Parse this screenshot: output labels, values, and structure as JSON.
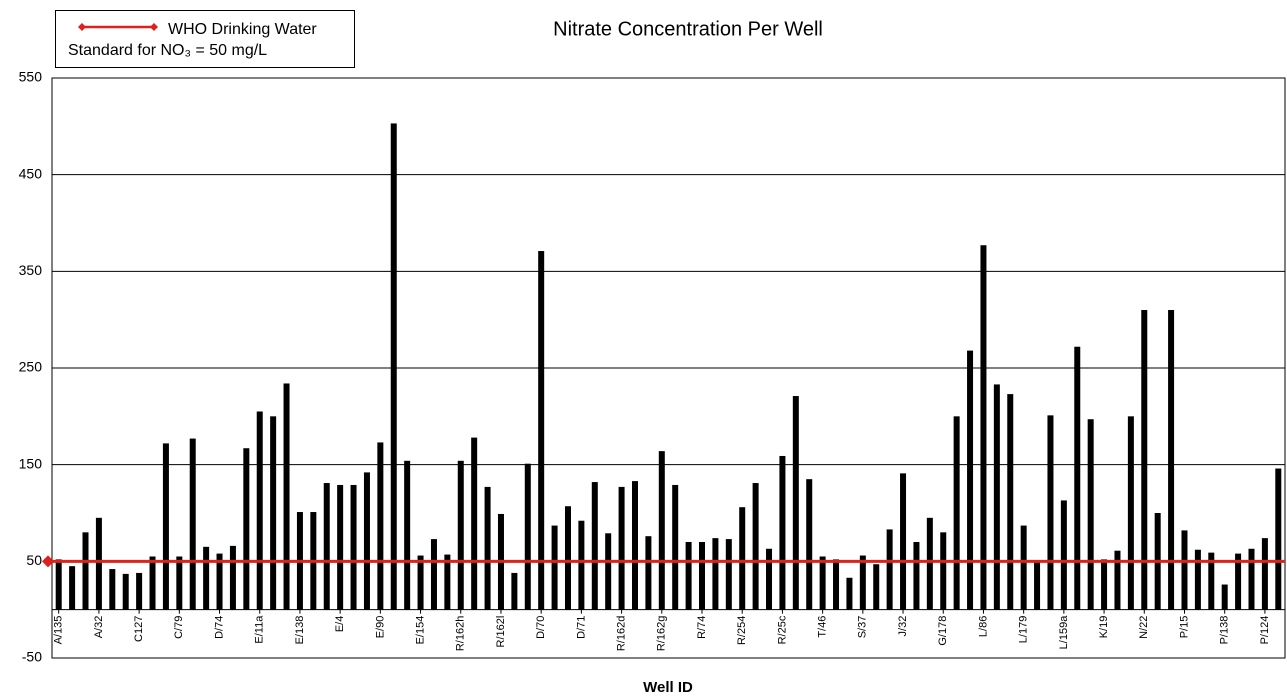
{
  "chart_data": {
    "type": "bar",
    "title": "Nitrate Concentration Per Well",
    "x_label": "Well ID",
    "categories": [
      "A/135",
      null,
      null,
      "A/32",
      null,
      null,
      "C127",
      null,
      null,
      "C/79",
      null,
      null,
      "D/74",
      null,
      null,
      "E/11a",
      null,
      null,
      "E/138",
      null,
      null,
      "E/4",
      null,
      null,
      "E/90",
      null,
      null,
      "E/154",
      null,
      null,
      "R/162h",
      null,
      null,
      "R/162l",
      null,
      null,
      "D/70",
      null,
      null,
      "D/71",
      null,
      null,
      "R/162d",
      null,
      null,
      "R/162g",
      null,
      null,
      "R/74",
      null,
      null,
      "R/254",
      null,
      null,
      "R/25c",
      null,
      null,
      "T/46",
      null,
      null,
      "S/37",
      null,
      null,
      "J/32",
      null,
      null,
      "G/178",
      null,
      null,
      "L/86",
      null,
      null,
      "L/179",
      null,
      null,
      "L/159a",
      null,
      null,
      "K/19",
      null,
      null,
      "N/22",
      null,
      null,
      "P/15",
      null,
      null,
      "P/138",
      null,
      null,
      "P/124",
      null
    ],
    "values": [
      52,
      45,
      80,
      95,
      42,
      37,
      38,
      55,
      172,
      55,
      177,
      65,
      58,
      66,
      167,
      205,
      200,
      234,
      101,
      101,
      131,
      129,
      129,
      142,
      173,
      503,
      154,
      56,
      73,
      57,
      154,
      178,
      127,
      99,
      38,
      151,
      371,
      87,
      107,
      92,
      132,
      79,
      127,
      133,
      76,
      164,
      129,
      70,
      70,
      74,
      73,
      106,
      131,
      63,
      159,
      221,
      135,
      55,
      52,
      33,
      56,
      47,
      83,
      141,
      70,
      95,
      80,
      200,
      268,
      377,
      233,
      223,
      87,
      50,
      201,
      113,
      272,
      197,
      52,
      61,
      200,
      310,
      100,
      310,
      82,
      62,
      59,
      26,
      58,
      63,
      74,
      146
    ],
    "color": "#000000",
    "threshold": {
      "name": "WHO Drinking Water Standard for NO₃ = 50 mg/L",
      "value": 50,
      "color": "#e0201b"
    },
    "ylim": [
      -50,
      550
    ],
    "yticks": [
      -50,
      50,
      150,
      250,
      350,
      450,
      550
    ],
    "grid": true,
    "legend": "top-left"
  }
}
